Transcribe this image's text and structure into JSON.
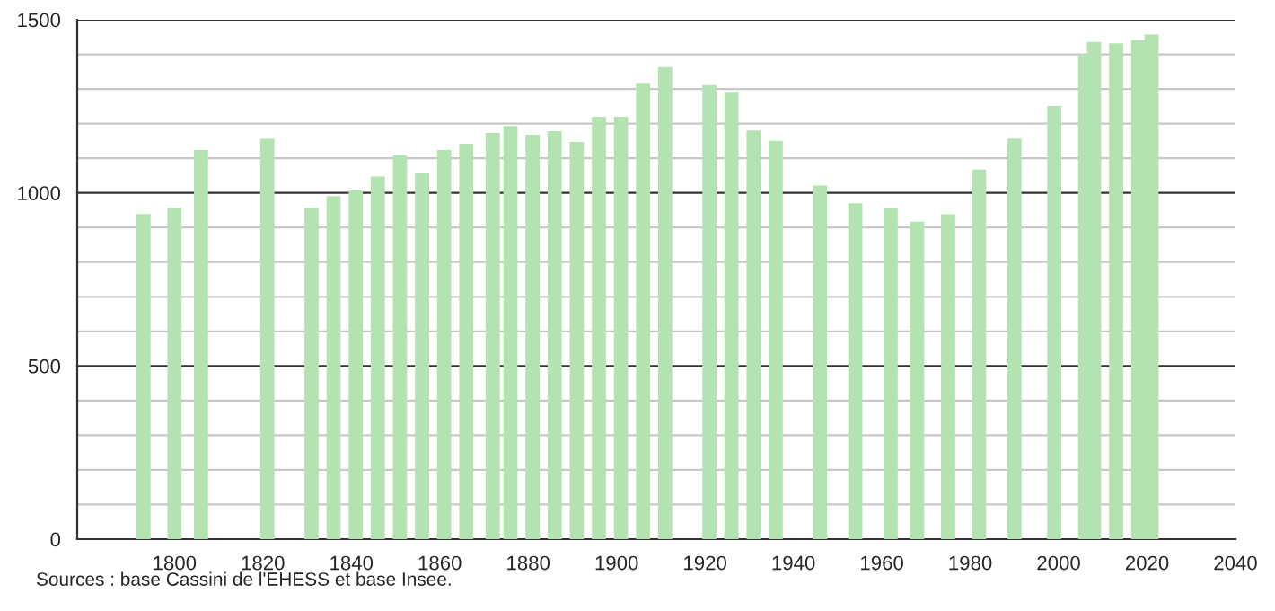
{
  "chart_data": {
    "type": "bar",
    "x": [
      1793,
      1800,
      1806,
      1821,
      1831,
      1836,
      1841,
      1846,
      1851,
      1856,
      1861,
      1866,
      1872,
      1876,
      1881,
      1886,
      1891,
      1896,
      1901,
      1906,
      1911,
      1921,
      1926,
      1931,
      1936,
      1946,
      1954,
      1962,
      1968,
      1975,
      1982,
      1990,
      1999,
      2006,
      2008,
      2013,
      2018,
      2021
    ],
    "values": [
      939,
      956,
      1124,
      1156,
      956,
      991,
      1007,
      1047,
      1109,
      1059,
      1124,
      1142,
      1173,
      1193,
      1168,
      1178,
      1147,
      1220,
      1220,
      1318,
      1363,
      1311,
      1292,
      1180,
      1150,
      1021,
      970,
      955,
      917,
      938,
      1067,
      1157,
      1251,
      1401,
      1436,
      1432,
      1441,
      1457
    ],
    "color": "#b3e3b0",
    "xlim": [
      1778,
      2040
    ],
    "xticks": [
      1800,
      1820,
      1840,
      1860,
      1880,
      1900,
      1920,
      1940,
      1960,
      1980,
      2000,
      2020,
      2040
    ],
    "ylim": [
      0,
      1500
    ],
    "yticks": [
      0,
      {
        "value": 100,
        "label": null
      },
      {
        "value": 200,
        "label": null
      },
      {
        "value": 300,
        "label": null
      },
      {
        "value": 400,
        "label": null
      },
      500,
      {
        "value": 600,
        "label": null
      },
      {
        "value": 700,
        "label": null
      },
      {
        "value": 800,
        "label": null
      },
      {
        "value": 900,
        "label": null
      },
      1000,
      {
        "value": 1100,
        "label": null
      },
      {
        "value": 1200,
        "label": null
      },
      {
        "value": 1300,
        "label": null
      },
      {
        "value": 1400,
        "label": null
      },
      1500
    ],
    "grid": "y",
    "annotations": [
      "Sources : base Cassini de l'EHESS et base Insee."
    ]
  }
}
